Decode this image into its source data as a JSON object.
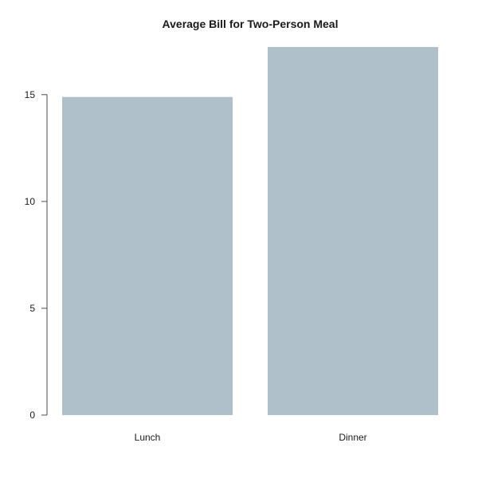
{
  "chart_data": {
    "type": "bar",
    "title": "Average Bill for Two-Person Meal",
    "xlabel": "",
    "ylabel": "",
    "categories": [
      "Lunch",
      "Dinner"
    ],
    "values": [
      14.89,
      17.23
    ],
    "ylim": [
      0,
      17.23
    ],
    "yticks": [
      0,
      5,
      10,
      15
    ],
    "ytick_labels": [
      "0",
      "5",
      "10",
      "15"
    ],
    "grid": false,
    "legend": "none",
    "colors": {
      "bar": "#b0c0ca",
      "axis": "#4d4d4d",
      "text": "#1a1a1a"
    }
  }
}
